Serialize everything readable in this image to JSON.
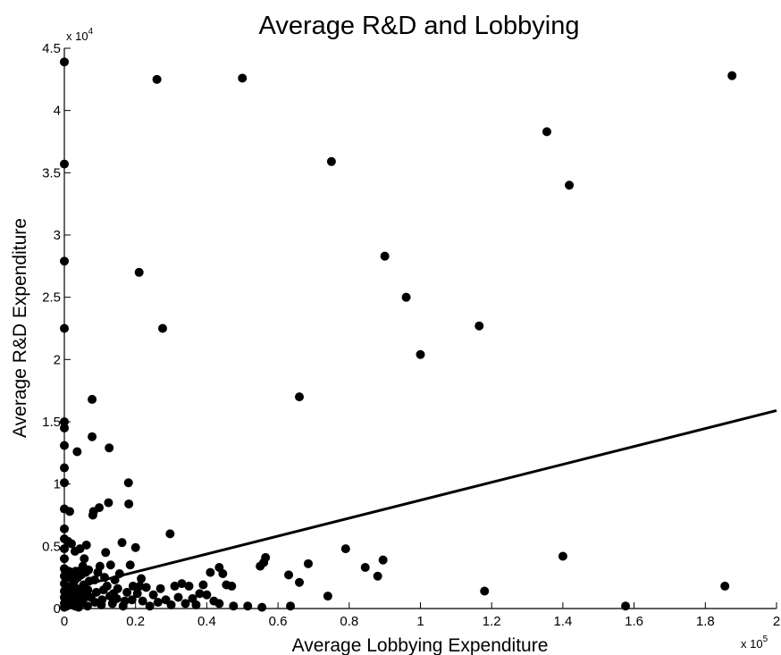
{
  "chart_data": {
    "type": "scatter",
    "title": "Average R&D and Lobbying",
    "xlabel": "Average Lobbying Expenditure",
    "ylabel": "Average R&D Expenditure",
    "x_multiplier": {
      "base": "x 10",
      "exponent": "5"
    },
    "y_multiplier": {
      "base": "x 10",
      "exponent": "4"
    },
    "xlim": [
      0,
      200000
    ],
    "ylim": [
      0,
      45000
    ],
    "xticks": [
      0,
      20000,
      40000,
      60000,
      80000,
      100000,
      120000,
      140000,
      160000,
      180000,
      200000
    ],
    "xtick_labels": [
      "0",
      "0.2",
      "0.4",
      "0.6",
      "0.8",
      "1",
      "1.2",
      "1.4",
      "1.6",
      "1.8",
      "2"
    ],
    "yticks": [
      0,
      5000,
      10000,
      15000,
      20000,
      25000,
      30000,
      35000,
      40000,
      45000
    ],
    "ytick_labels": [
      "0",
      "0.5",
      "1",
      "1.5",
      "2",
      "2.5",
      "3",
      "3.5",
      "4",
      "4.5"
    ],
    "grid": false,
    "legend": "none",
    "marker_color": "#000000",
    "fit_line": {
      "x": [
        0,
        200000
      ],
      "y": [
        1500,
        15900
      ]
    },
    "points": [
      [
        0,
        43900
      ],
      [
        0,
        35700
      ],
      [
        0,
        27900
      ],
      [
        0,
        22500
      ],
      [
        0,
        15000
      ],
      [
        0,
        14500
      ],
      [
        0,
        13100
      ],
      [
        0,
        11300
      ],
      [
        0,
        10100
      ],
      [
        0,
        8000
      ],
      [
        0,
        6400
      ],
      [
        0,
        5600
      ],
      [
        0,
        4800
      ],
      [
        0,
        4000
      ],
      [
        0,
        3200
      ],
      [
        0,
        2600
      ],
      [
        0,
        2000
      ],
      [
        0,
        1400
      ],
      [
        0,
        900
      ],
      [
        0,
        400
      ],
      [
        0,
        100
      ],
      [
        300,
        3000
      ],
      [
        400,
        1800
      ],
      [
        500,
        700
      ],
      [
        700,
        200
      ],
      [
        800,
        2600
      ],
      [
        1000,
        5400
      ],
      [
        1100,
        1200
      ],
      [
        1200,
        3000
      ],
      [
        1300,
        500
      ],
      [
        1500,
        7800
      ],
      [
        1600,
        2500
      ],
      [
        1700,
        1500
      ],
      [
        1800,
        900
      ],
      [
        2000,
        5200
      ],
      [
        2000,
        300
      ],
      [
        2200,
        2900
      ],
      [
        2300,
        1900
      ],
      [
        2500,
        600
      ],
      [
        2600,
        1100
      ],
      [
        2800,
        2200
      ],
      [
        3000,
        4600
      ],
      [
        3000,
        200
      ],
      [
        3200,
        3000
      ],
      [
        3400,
        1600
      ],
      [
        3600,
        12600
      ],
      [
        3600,
        800
      ],
      [
        3800,
        2500
      ],
      [
        4000,
        100
      ],
      [
        4200,
        3000
      ],
      [
        4400,
        4800
      ],
      [
        4600,
        1300
      ],
      [
        4700,
        2700
      ],
      [
        5000,
        500
      ],
      [
        5200,
        3400
      ],
      [
        5400,
        1900
      ],
      [
        5600,
        4000
      ],
      [
        5800,
        900
      ],
      [
        6000,
        2900
      ],
      [
        6200,
        5100
      ],
      [
        6500,
        200
      ],
      [
        6600,
        1500
      ],
      [
        6800,
        3100
      ],
      [
        7000,
        2200
      ],
      [
        7500,
        900
      ],
      [
        7800,
        16800
      ],
      [
        7800,
        13800
      ],
      [
        8000,
        7500
      ],
      [
        8200,
        7800
      ],
      [
        8500,
        2300
      ],
      [
        8600,
        500
      ],
      [
        9000,
        1300
      ],
      [
        9400,
        2900
      ],
      [
        9800,
        8100
      ],
      [
        10000,
        3400
      ],
      [
        10400,
        300
      ],
      [
        10600,
        700
      ],
      [
        11000,
        1500
      ],
      [
        11300,
        2500
      ],
      [
        11600,
        4500
      ],
      [
        12000,
        1800
      ],
      [
        12400,
        8500
      ],
      [
        12600,
        12900
      ],
      [
        12800,
        1000
      ],
      [
        13000,
        3500
      ],
      [
        13500,
        400
      ],
      [
        13800,
        1200
      ],
      [
        14200,
        2300
      ],
      [
        14700,
        800
      ],
      [
        15000,
        1600
      ],
      [
        15500,
        2800
      ],
      [
        16200,
        5300
      ],
      [
        16500,
        200
      ],
      [
        17000,
        600
      ],
      [
        17600,
        1300
      ],
      [
        18000,
        10100
      ],
      [
        18100,
        8400
      ],
      [
        18500,
        3500
      ],
      [
        19000,
        700
      ],
      [
        19300,
        1800
      ],
      [
        20000,
        4900
      ],
      [
        20500,
        1200
      ],
      [
        21000,
        27000
      ],
      [
        21200,
        1800
      ],
      [
        21600,
        2400
      ],
      [
        22000,
        600
      ],
      [
        23000,
        1700
      ],
      [
        24000,
        200
      ],
      [
        25000,
        1100
      ],
      [
        26000,
        42500
      ],
      [
        26300,
        500
      ],
      [
        27000,
        1600
      ],
      [
        27600,
        22500
      ],
      [
        28500,
        700
      ],
      [
        29700,
        6000
      ],
      [
        30000,
        300
      ],
      [
        31000,
        1800
      ],
      [
        32000,
        900
      ],
      [
        33000,
        2000
      ],
      [
        34000,
        400
      ],
      [
        35000,
        1800
      ],
      [
        36000,
        800
      ],
      [
        37000,
        300
      ],
      [
        38000,
        1200
      ],
      [
        39000,
        1900
      ],
      [
        40000,
        1100
      ],
      [
        41000,
        2900
      ],
      [
        42000,
        600
      ],
      [
        43500,
        3300
      ],
      [
        43500,
        400
      ],
      [
        44500,
        2800
      ],
      [
        45500,
        1900
      ],
      [
        47000,
        1800
      ],
      [
        47500,
        200
      ],
      [
        50000,
        42600
      ],
      [
        51500,
        200
      ],
      [
        55000,
        3400
      ],
      [
        55500,
        100
      ],
      [
        56000,
        3700
      ],
      [
        56500,
        4100
      ],
      [
        63000,
        2700
      ],
      [
        63500,
        200
      ],
      [
        66000,
        2100
      ],
      [
        66000,
        17000
      ],
      [
        68500,
        3600
      ],
      [
        74000,
        1000
      ],
      [
        75000,
        35900
      ],
      [
        79000,
        4800
      ],
      [
        84500,
        3300
      ],
      [
        88000,
        2600
      ],
      [
        89500,
        3900
      ],
      [
        90000,
        28300
      ],
      [
        96000,
        25000
      ],
      [
        100000,
        20400
      ],
      [
        116500,
        22700
      ],
      [
        118000,
        1400
      ],
      [
        135500,
        38300
      ],
      [
        140000,
        4200
      ],
      [
        141800,
        34000
      ],
      [
        157600,
        200
      ],
      [
        185500,
        1800
      ],
      [
        187500,
        42800
      ]
    ]
  }
}
